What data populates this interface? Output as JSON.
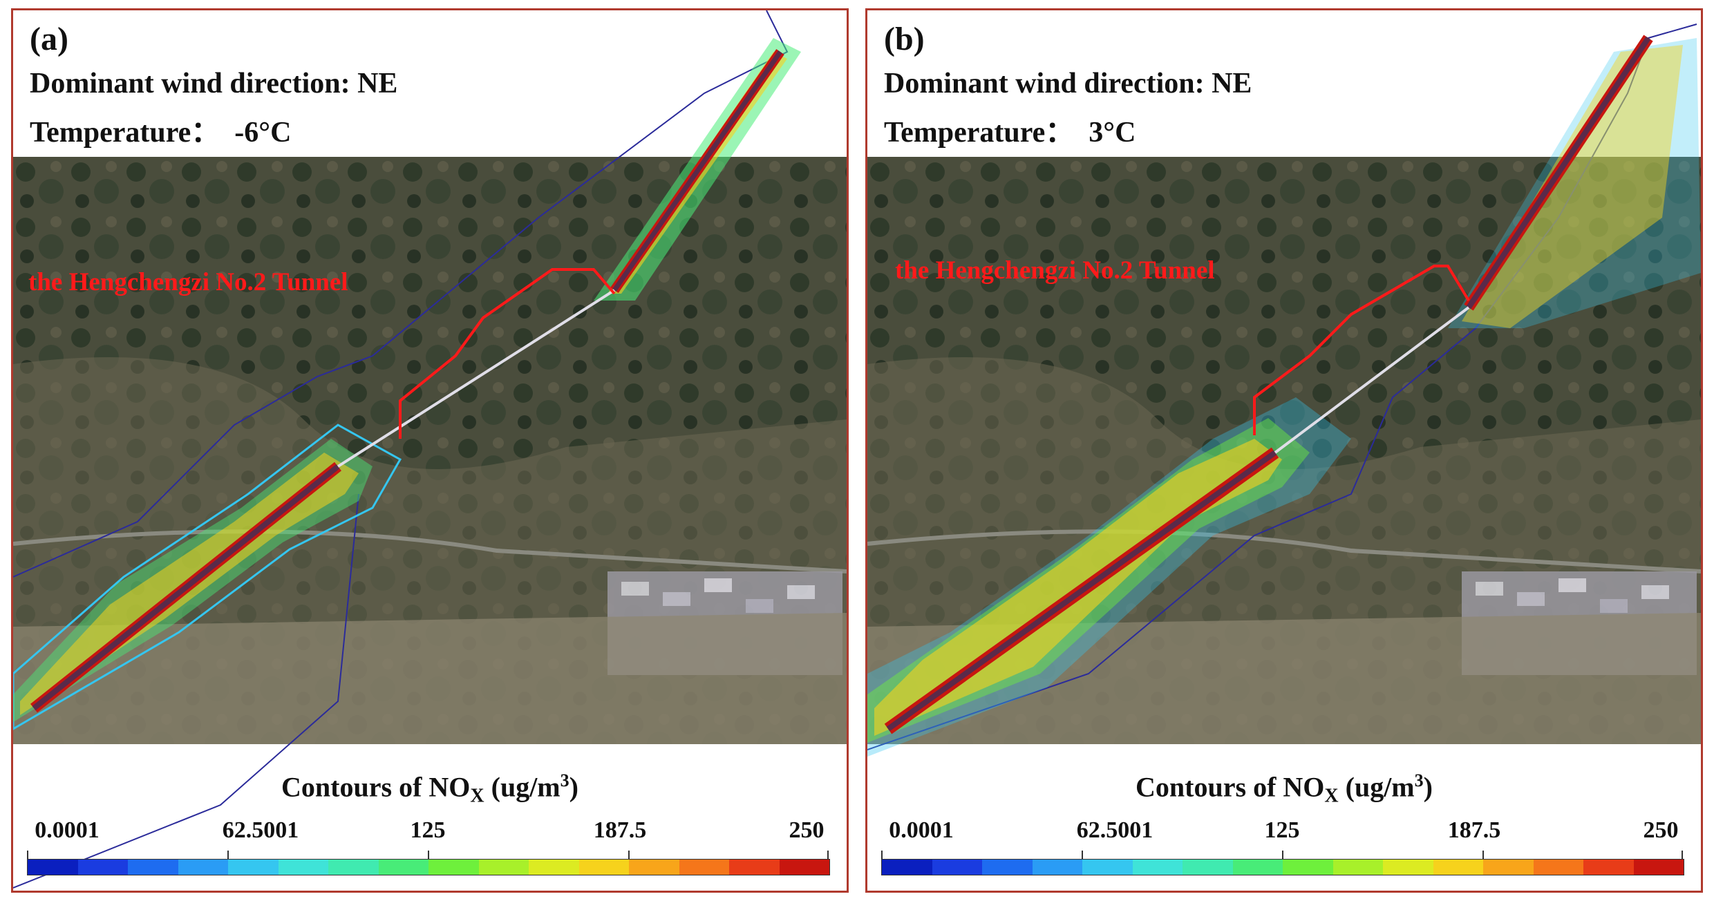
{
  "panels": [
    {
      "label": "(a)",
      "wind_text": "Dominant wind direction: NE",
      "temp_text": "Temperature：  -6°C",
      "tunnel_label": "the Hengchengzi No.2 Tunnel",
      "colorbar": {
        "title_prefix": "Contours of NO",
        "title_sub": "X",
        "title_unit_pre": " (ug/m",
        "title_unit_sup": "3",
        "title_unit_post": ")",
        "ticks": [
          "0.0001",
          "62.5001",
          "125",
          "187.5",
          "250"
        ]
      }
    },
    {
      "label": "(b)",
      "wind_text": "Dominant wind direction: NE",
      "temp_text": "Temperature：  3°C",
      "tunnel_label": "the Hengchengzi No.2 Tunnel",
      "colorbar": {
        "title_prefix": "Contours of NO",
        "title_sub": "X",
        "title_unit_pre": " (ug/m",
        "title_unit_sup": "3",
        "title_unit_post": ")",
        "ticks": [
          "0.0001",
          "62.5001",
          "125",
          "187.5",
          "250"
        ]
      }
    }
  ],
  "colors": {
    "frame": "#b03a2e",
    "tunnel_marker": "#ff1a1a",
    "road": "#5a2a4a",
    "domain_outline": "#2b2b9a",
    "colormap": [
      "#0a1fbf",
      "#1a3ce0",
      "#1e6cf0",
      "#2a9cf5",
      "#35c6f0",
      "#3fe3d8",
      "#40eab0",
      "#48ec78",
      "#6ef03c",
      "#a8f02a",
      "#dceb22",
      "#f6d21c",
      "#f8a51a",
      "#f5761a",
      "#e83c18",
      "#c8160f"
    ]
  }
}
